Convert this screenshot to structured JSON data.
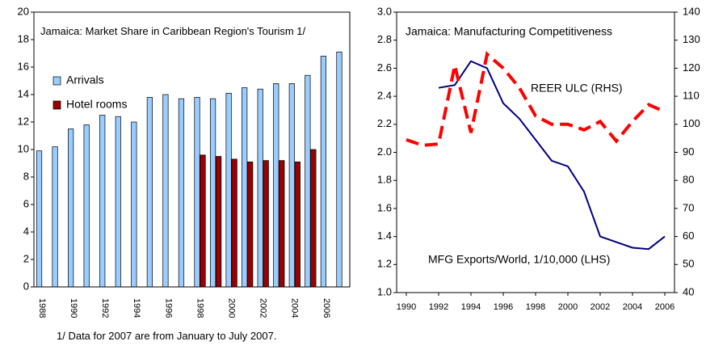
{
  "chart_data": [
    {
      "type": "bar",
      "title": "Jamaica: Market Share in Caribbean Region's Tourism 1/",
      "categories": [
        "1988",
        null,
        "1990",
        null,
        "1992",
        null,
        "1994",
        null,
        "1996",
        null,
        "1998",
        null,
        "2000",
        null,
        "2002",
        null,
        "2004",
        null,
        "2006",
        null
      ],
      "series": [
        {
          "name": "Arrivals",
          "color": "#99ccff",
          "values": [
            9.9,
            10.2,
            11.5,
            11.8,
            12.5,
            12.4,
            12.0,
            13.8,
            14.0,
            13.7,
            13.8,
            13.7,
            14.1,
            14.5,
            14.4,
            14.8,
            14.8,
            15.4,
            16.8,
            17.1
          ]
        },
        {
          "name": "Hotel rooms",
          "color": "#990000",
          "values": [
            null,
            null,
            null,
            null,
            null,
            null,
            null,
            null,
            null,
            null,
            9.6,
            9.5,
            9.3,
            9.1,
            9.2,
            9.2,
            9.1,
            10.0,
            null,
            null
          ]
        }
      ],
      "ylim": [
        0,
        20
      ],
      "yticks": [
        0,
        2,
        4,
        6,
        8,
        10,
        12,
        14,
        16,
        18,
        20
      ]
    },
    {
      "type": "line",
      "title": "Jamaica: Manufacturing Competitiveness",
      "x": [
        1990,
        1991,
        1992,
        1993,
        1994,
        1995,
        1996,
        1997,
        1998,
        1999,
        2000,
        2001,
        2002,
        2003,
        2004,
        2005,
        2006
      ],
      "series": [
        {
          "name": "MFG Exports/World, 1/10,000 (LHS)",
          "color": "#000080",
          "values": [
            null,
            null,
            2.46,
            2.48,
            2.65,
            2.6,
            2.35,
            2.24,
            2.09,
            1.94,
            1.9,
            1.72,
            1.4,
            1.36,
            1.32,
            1.31,
            1.4
          ]
        },
        {
          "name": "REER ULC (RHS)",
          "color": "#ff0000",
          "axis": "y2",
          "values": [
            94.5,
            92.5,
            93,
            121,
            97,
            125,
            120,
            113,
            103,
            100,
            100,
            98,
            101,
            94,
            101,
            107,
            104.5
          ]
        }
      ],
      "xlim": [
        1989.4,
        2006.6
      ],
      "xticks": [
        1990,
        1992,
        1994,
        1996,
        1998,
        2000,
        2002,
        2004,
        2006
      ],
      "ylim": [
        1.0,
        3.0
      ],
      "yticks": [
        {
          "value": 1.0,
          "label": "1.0"
        },
        1.2,
        1.4,
        1.6,
        1.8,
        {
          "value": 2.0,
          "label": "2.0"
        },
        2.2,
        2.4,
        2.6,
        2.8,
        {
          "value": 3.0,
          "label": "3.0"
        }
      ],
      "y2lim": [
        40,
        140
      ],
      "y2ticks": [
        40,
        50,
        60,
        70,
        80,
        90,
        100,
        110,
        120,
        130,
        140
      ]
    }
  ],
  "footnote": "1/ Data for 2007 are from January to July 2007."
}
